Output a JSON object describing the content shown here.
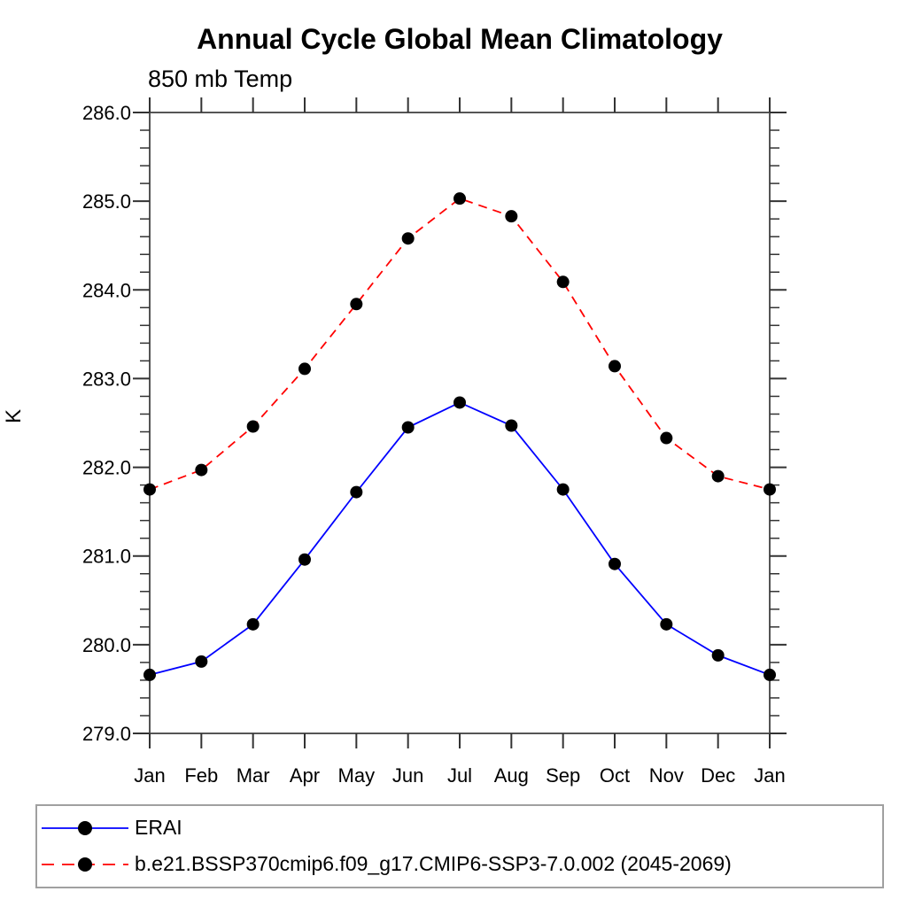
{
  "page": {
    "background": "#ffffff"
  },
  "chart_data": {
    "type": "line",
    "title": "Annual Cycle Global Mean Climatology",
    "subtitle": "850 mb Temp",
    "xlabel": "",
    "ylabel": "K",
    "categories": [
      "Jan",
      "Feb",
      "Mar",
      "Apr",
      "May",
      "Jun",
      "Jul",
      "Aug",
      "Sep",
      "Oct",
      "Nov",
      "Dec",
      "Jan"
    ],
    "ylim": [
      279.0,
      286.0
    ],
    "ytick_major": 1.0,
    "ytick_minor": 0.2,
    "ytick_label_format": "one_decimal",
    "grid": false,
    "legend_position": "bottom",
    "axis_color": "#555555",
    "tick_color": "#333333",
    "marker_color": "#000000",
    "legend_border_color": "#a0a0a0",
    "series": [
      {
        "name": "ERAI",
        "color": "#0000ff",
        "style": "solid",
        "marker": "circle",
        "values": [
          279.66,
          279.81,
          280.23,
          280.96,
          281.72,
          282.45,
          282.73,
          282.47,
          281.75,
          280.91,
          280.23,
          279.88,
          279.66
        ]
      },
      {
        "name": "b.e21.BSSP370cmip6.f09_g17.CMIP6-SSP3-7.0.002 (2045-2069)",
        "color": "#ff0000",
        "style": "dashed",
        "marker": "circle",
        "values": [
          281.75,
          281.97,
          282.46,
          283.11,
          283.84,
          284.58,
          285.03,
          284.83,
          284.09,
          283.14,
          282.33,
          281.9,
          281.75
        ]
      }
    ]
  }
}
